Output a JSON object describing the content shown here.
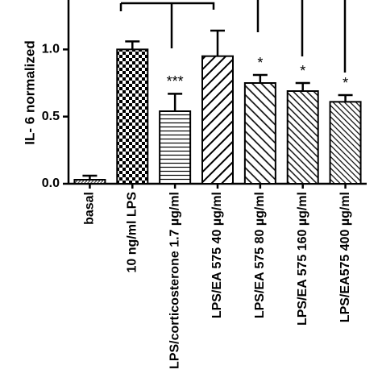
{
  "chart_data": {
    "type": "bar",
    "y_label": "IL- 6 normalized",
    "categories": [
      "basal",
      "10 ng/ml LPS",
      "LPS/corticosterone 1.7 µg/ml",
      "LPS/EA 575 40 µg/ml",
      "LPS/EA 575 80 µg/ml",
      "LPS/EA 575 160 µg/ml",
      "LPS/EA575 400 µg/ml"
    ],
    "values": [
      0.03,
      1.0,
      0.54,
      0.95,
      0.75,
      0.69,
      0.61
    ],
    "errors": [
      0.03,
      0.06,
      0.13,
      0.19,
      0.06,
      0.06,
      0.05
    ],
    "significance": [
      null,
      null,
      "***",
      null,
      "*",
      "*",
      "*"
    ],
    "ylim": [
      0,
      1.35
    ],
    "yticks": [
      {
        "value": 0,
        "label": "0.0"
      },
      0.5,
      {
        "value": 1,
        "label": "1.0"
      }
    ]
  }
}
